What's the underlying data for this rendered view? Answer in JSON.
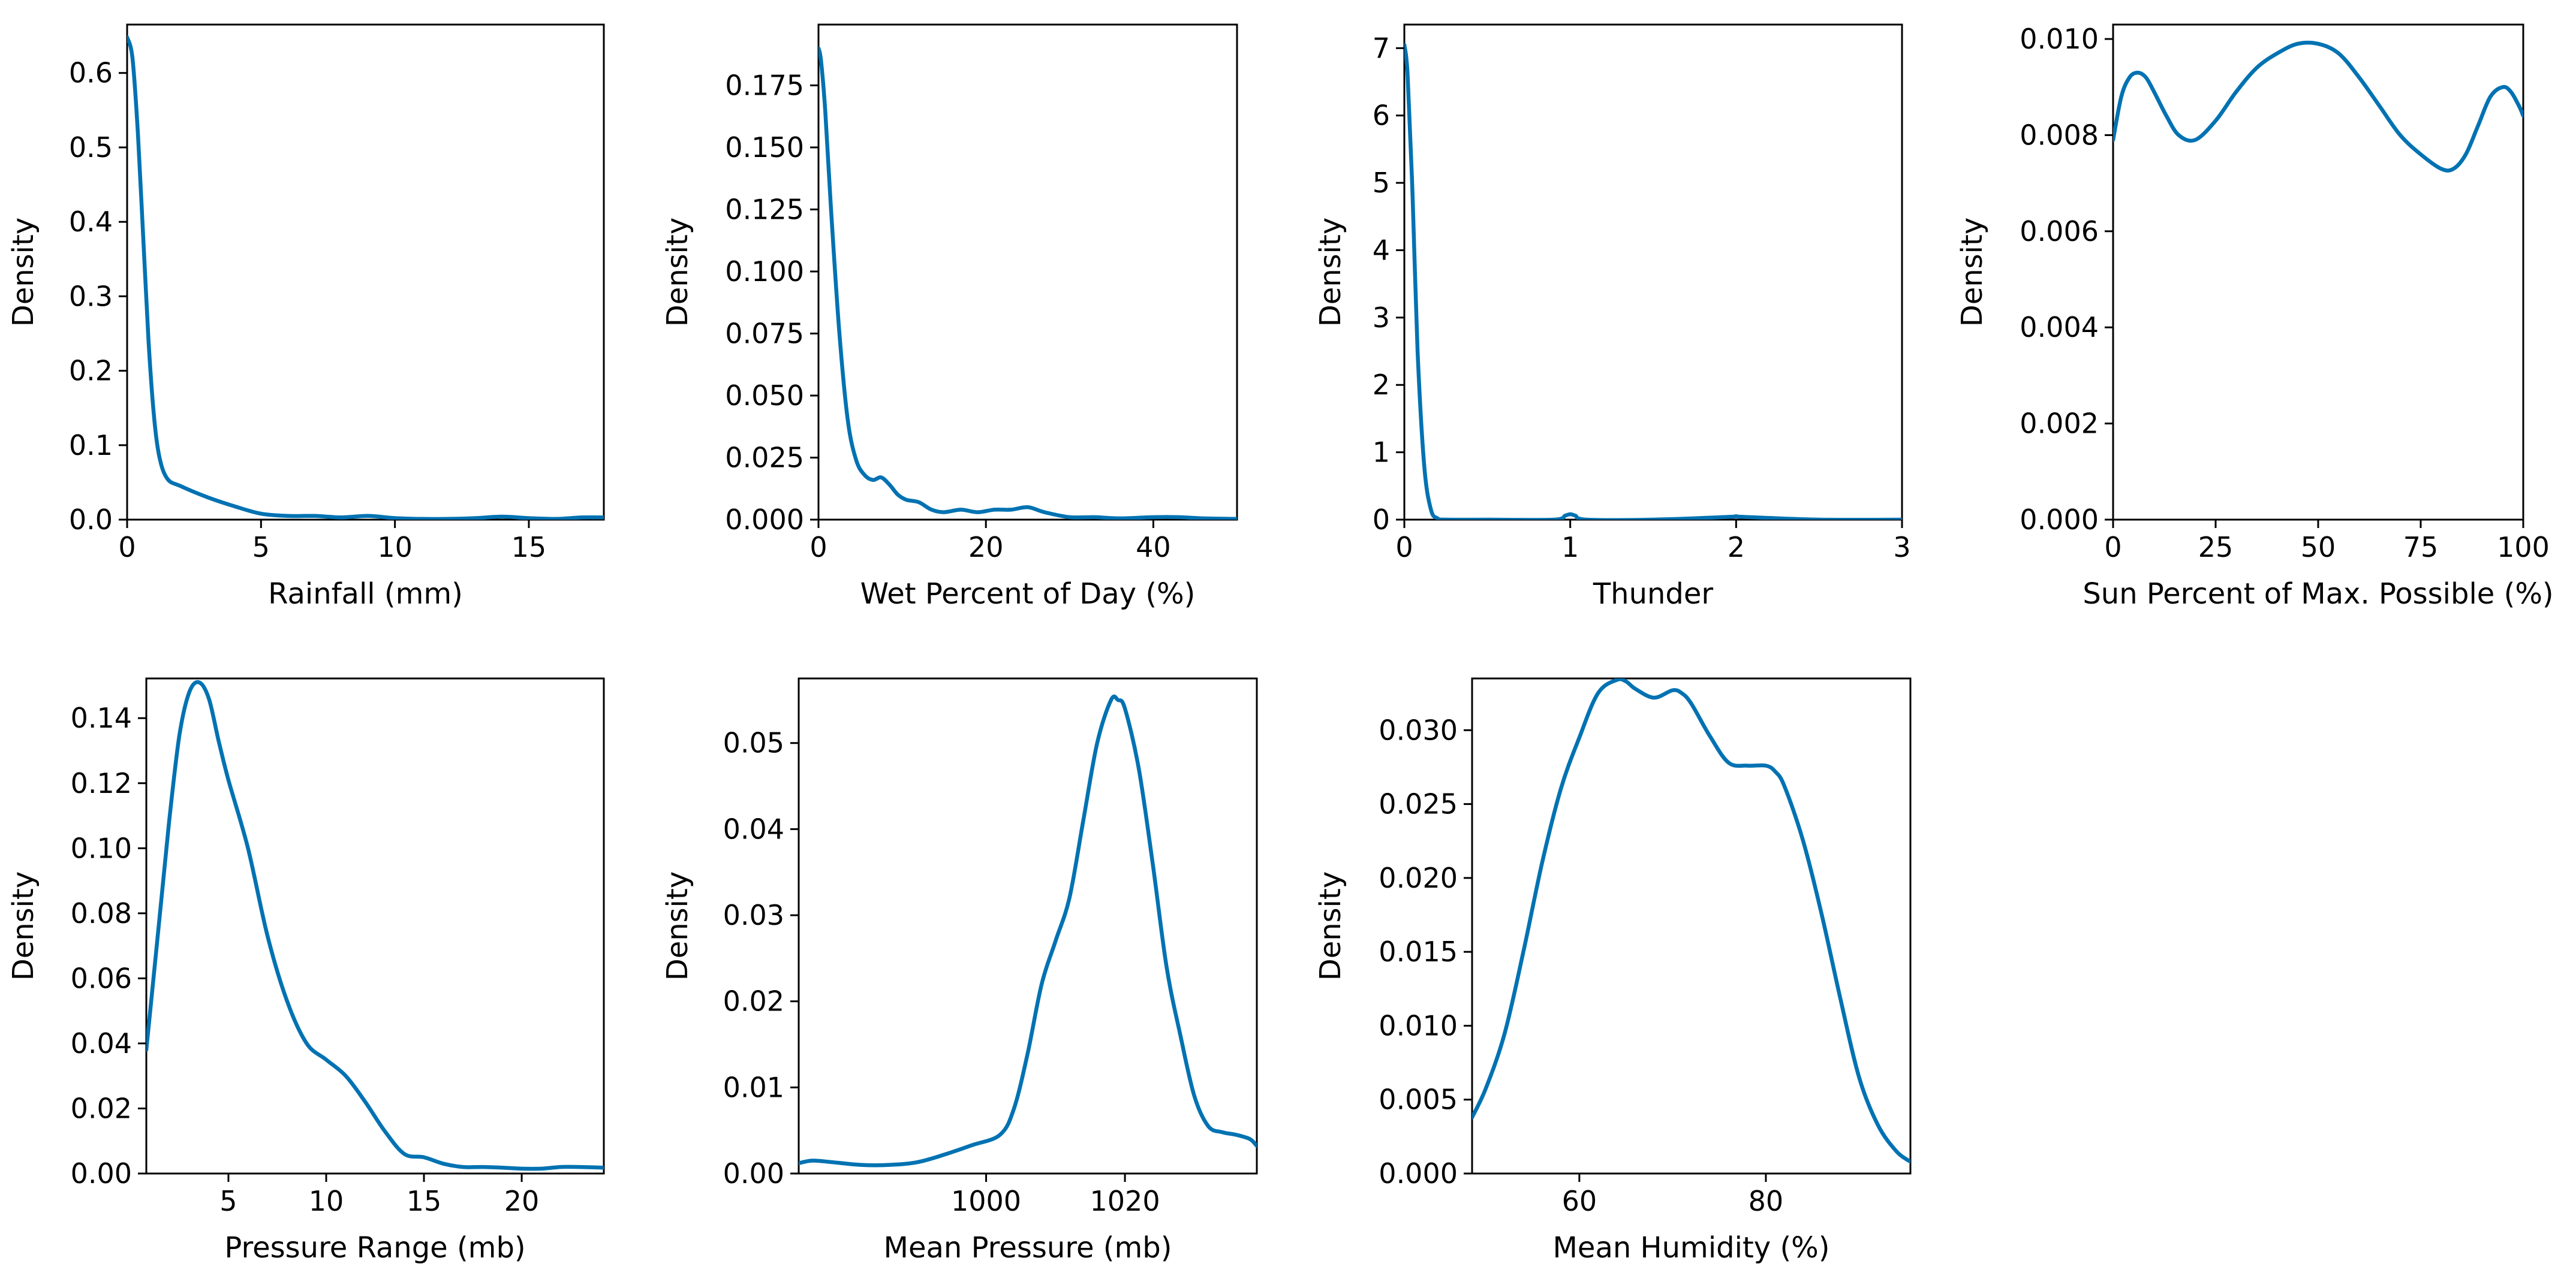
{
  "chart_data": [
    {
      "type": "line",
      "title": "",
      "xlabel": "Rainfall (mm)",
      "ylabel": "Density",
      "xlim": [
        0,
        17.8
      ],
      "ylim": [
        0,
        0.665
      ],
      "xticks": [
        0,
        5,
        10,
        15
      ],
      "xtick_labels": [
        "0",
        "5",
        "10",
        "15"
      ],
      "yticks": [
        0,
        0.1,
        0.2,
        0.3,
        0.4,
        0.5,
        0.6
      ],
      "ytick_labels": [
        "0.0",
        "0.1",
        "0.2",
        "0.3",
        "0.4",
        "0.5",
        "0.6"
      ],
      "grid": false,
      "series": [
        {
          "name": "Rainfall (mm)",
          "color": "#0072B2",
          "x": [
            0,
            0.2,
            0.4,
            0.6,
            0.8,
            1.0,
            1.2,
            1.5,
            2.0,
            3.0,
            4.0,
            5.0,
            6.0,
            7.0,
            8.0,
            9.0,
            10.0,
            11.0,
            12.0,
            13.0,
            14.0,
            15.0,
            16.0,
            17.0,
            17.8
          ],
          "y": [
            0.648,
            0.62,
            0.52,
            0.38,
            0.24,
            0.14,
            0.085,
            0.055,
            0.045,
            0.03,
            0.018,
            0.008,
            0.005,
            0.005,
            0.003,
            0.005,
            0.002,
            0.001,
            0.001,
            0.002,
            0.004,
            0.002,
            0.001,
            0.003,
            0.003
          ]
        }
      ]
    },
    {
      "type": "line",
      "title": "",
      "xlabel": "Wet Percent of Day (%)",
      "ylabel": "Density",
      "xlim": [
        0,
        50
      ],
      "ylim": [
        0,
        0.1995
      ],
      "xticks": [
        0,
        20,
        40
      ],
      "xtick_labels": [
        "0",
        "20",
        "40"
      ],
      "yticks": [
        0,
        0.025,
        0.05,
        0.075,
        0.1,
        0.125,
        0.15,
        0.175
      ],
      "ytick_labels": [
        "0.000",
        "0.025",
        "0.050",
        "0.075",
        "0.100",
        "0.125",
        "0.150",
        "0.175"
      ],
      "grid": false,
      "series": [
        {
          "name": "Wet Percent of Day (%)",
          "color": "#0072B2",
          "x": [
            0,
            0.3,
            0.8,
            1.5,
            2.5,
            3.5,
            4.5,
            5.5,
            6.5,
            7.5,
            8.5,
            9.5,
            10.5,
            12,
            13.5,
            15,
            17,
            19,
            21,
            23,
            25,
            27,
            30,
            33,
            36,
            40,
            43,
            46,
            50
          ],
          "y": [
            0.19,
            0.185,
            0.165,
            0.125,
            0.075,
            0.04,
            0.024,
            0.018,
            0.016,
            0.017,
            0.014,
            0.01,
            0.008,
            0.007,
            0.004,
            0.003,
            0.004,
            0.003,
            0.004,
            0.004,
            0.005,
            0.003,
            0.001,
            0.001,
            0.0005,
            0.001,
            0.001,
            0.0005,
            0.0003
          ]
        }
      ]
    },
    {
      "type": "line",
      "title": "",
      "xlabel": "Thunder",
      "ylabel": "Density",
      "xlim": [
        0,
        3
      ],
      "ylim": [
        0,
        7.35
      ],
      "xticks": [
        0,
        1,
        2,
        3
      ],
      "xtick_labels": [
        "0",
        "1",
        "2",
        "3"
      ],
      "yticks": [
        0,
        1,
        2,
        3,
        4,
        5,
        6,
        7
      ],
      "ytick_labels": [
        "0",
        "1",
        "2",
        "3",
        "4",
        "5",
        "6",
        "7"
      ],
      "grid": false,
      "series": [
        {
          "name": "Thunder",
          "color": "#0072B2",
          "x": [
            0,
            0.02,
            0.05,
            0.08,
            0.12,
            0.16,
            0.2,
            0.25,
            0.5,
            0.9,
            0.97,
            1.0,
            1.03,
            1.1,
            1.5,
            1.95,
            2.0,
            2.05,
            2.5,
            3.0
          ],
          "y": [
            7.05,
            6.6,
            4.8,
            2.5,
            0.8,
            0.15,
            0.02,
            0,
            0,
            0,
            0.06,
            0.08,
            0.06,
            0,
            0,
            0.04,
            0.05,
            0.04,
            0,
            0
          ]
        }
      ]
    },
    {
      "type": "line",
      "title": "",
      "xlabel": "Sun Percent of Max. Possible (%)",
      "ylabel": "Density",
      "xlim": [
        0,
        100
      ],
      "ylim": [
        0,
        0.0103
      ],
      "xticks": [
        0,
        25,
        50,
        75,
        100
      ],
      "xtick_labels": [
        "0",
        "25",
        "50",
        "75",
        "100"
      ],
      "yticks": [
        0,
        0.002,
        0.004,
        0.006,
        0.008,
        0.01
      ],
      "ytick_labels": [
        "0.000",
        "0.002",
        "0.004",
        "0.006",
        "0.008",
        "0.010"
      ],
      "grid": false,
      "series": [
        {
          "name": "Sun Percent of Max. Possible (%)",
          "color": "#0072B2",
          "x": [
            0,
            2,
            4,
            6,
            8,
            10,
            13,
            16,
            20,
            25,
            30,
            35,
            40,
            45,
            50,
            55,
            60,
            65,
            70,
            75,
            80,
            83,
            86,
            89,
            92,
            95,
            97,
            99,
            100
          ],
          "y": [
            0.0079,
            0.0088,
            0.0092,
            0.0093,
            0.0092,
            0.0089,
            0.0084,
            0.008,
            0.0079,
            0.0083,
            0.0089,
            0.0094,
            0.0097,
            0.0099,
            0.0099,
            0.0097,
            0.0092,
            0.0086,
            0.008,
            0.0076,
            0.0073,
            0.0073,
            0.0076,
            0.0082,
            0.0088,
            0.009,
            0.0089,
            0.0086,
            0.0084
          ]
        }
      ]
    },
    {
      "type": "line",
      "title": "",
      "xlabel": "Pressure Range (mb)",
      "ylabel": "Density",
      "xlim": [
        0.8,
        24.2
      ],
      "ylim": [
        0,
        0.1522
      ],
      "xticks": [
        5,
        10,
        15,
        20
      ],
      "xtick_labels": [
        "5",
        "10",
        "15",
        "20"
      ],
      "yticks": [
        0,
        0.02,
        0.04,
        0.06,
        0.08,
        0.1,
        0.12,
        0.14
      ],
      "ytick_labels": [
        "0.00",
        "0.02",
        "0.04",
        "0.06",
        "0.08",
        "0.10",
        "0.12",
        "0.14"
      ],
      "grid": false,
      "series": [
        {
          "name": "Pressure Range (mb)",
          "color": "#0072B2",
          "x": [
            0.8,
            1.5,
            2.0,
            2.5,
            3.0,
            3.5,
            4.0,
            4.5,
            5.0,
            6.0,
            7.0,
            8.0,
            9.0,
            10.0,
            11.0,
            12.0,
            13.0,
            14.0,
            15.0,
            16.0,
            17.0,
            18.0,
            19.0,
            20.0,
            21.0,
            22.0,
            23.0,
            24.2
          ],
          "y": [
            0.038,
            0.08,
            0.11,
            0.135,
            0.148,
            0.151,
            0.146,
            0.133,
            0.121,
            0.1,
            0.073,
            0.053,
            0.04,
            0.035,
            0.03,
            0.022,
            0.013,
            0.006,
            0.005,
            0.003,
            0.002,
            0.002,
            0.0018,
            0.0015,
            0.0015,
            0.002,
            0.002,
            0.0018
          ]
        }
      ]
    },
    {
      "type": "line",
      "title": "",
      "xlabel": "Mean Pressure (mb)",
      "ylabel": "Density",
      "xlim": [
        973,
        1039
      ],
      "ylim": [
        0,
        0.0575
      ],
      "xticks": [
        1000,
        1020
      ],
      "xtick_labels": [
        "1000",
        "1020"
      ],
      "yticks": [
        0,
        0.01,
        0.02,
        0.03,
        0.04,
        0.05
      ],
      "ytick_labels": [
        "0.00",
        "0.01",
        "0.02",
        "0.03",
        "0.04",
        "0.05"
      ],
      "grid": false,
      "series": [
        {
          "name": "Mean Pressure (mb)",
          "color": "#0072B2",
          "x": [
            973,
            975,
            978,
            982,
            986,
            990,
            994,
            998,
            1002,
            1004,
            1006,
            1008,
            1010,
            1012,
            1014,
            1016,
            1018,
            1019,
            1020,
            1022,
            1024,
            1026,
            1028,
            1030,
            1032,
            1034,
            1036,
            1038,
            1039
          ],
          "y": [
            0.0012,
            0.0015,
            0.0013,
            0.001,
            0.001,
            0.0013,
            0.0022,
            0.0033,
            0.0045,
            0.0075,
            0.014,
            0.022,
            0.027,
            0.032,
            0.041,
            0.05,
            0.055,
            0.055,
            0.054,
            0.047,
            0.036,
            0.024,
            0.016,
            0.009,
            0.0055,
            0.0048,
            0.0045,
            0.004,
            0.0032
          ]
        }
      ]
    },
    {
      "type": "line",
      "title": "",
      "xlabel": "Mean Humidity (%)",
      "ylabel": "Density",
      "xlim": [
        48.5,
        95.5
      ],
      "ylim": [
        0,
        0.0335
      ],
      "xticks": [
        60,
        80
      ],
      "xtick_labels": [
        "60",
        "80"
      ],
      "yticks": [
        0,
        0.005,
        0.01,
        0.015,
        0.02,
        0.025,
        0.03
      ],
      "ytick_labels": [
        "0.000",
        "0.005",
        "0.010",
        "0.015",
        "0.020",
        "0.025",
        "0.030"
      ],
      "grid": false,
      "series": [
        {
          "name": "Mean Humidity (%)",
          "color": "#0072B2",
          "x": [
            48.5,
            50,
            52,
            54,
            56,
            58,
            60,
            62,
            64,
            65,
            66,
            68,
            70,
            71,
            72,
            74,
            76,
            78,
            80,
            81,
            82,
            84,
            86,
            88,
            90,
            92,
            94,
            95.5
          ],
          "y": [
            0.0038,
            0.0058,
            0.0095,
            0.015,
            0.021,
            0.026,
            0.0295,
            0.0325,
            0.0334,
            0.0333,
            0.0328,
            0.0322,
            0.0327,
            0.0325,
            0.0318,
            0.0296,
            0.0278,
            0.0276,
            0.0276,
            0.0272,
            0.0262,
            0.0225,
            0.0175,
            0.0118,
            0.0065,
            0.0033,
            0.0015,
            0.0008
          ]
        }
      ]
    }
  ]
}
